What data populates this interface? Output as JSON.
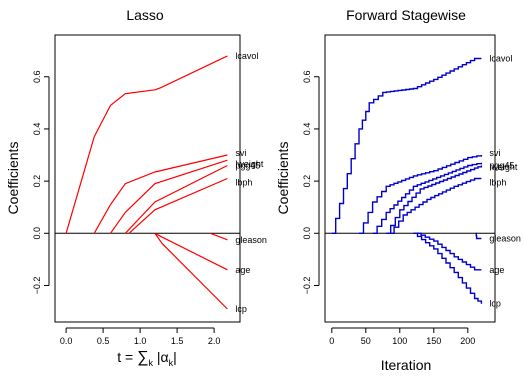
{
  "chart_data": [
    {
      "type": "line",
      "title": "Lasso",
      "xlabel": "t = ∑k |αk|",
      "ylabel": "Coefficients",
      "xlim": [
        -0.15,
        2.35
      ],
      "ylim": [
        -0.34,
        0.76
      ],
      "xticks": [
        "0.0",
        "0.5",
        "1.0",
        "1.5",
        "2.0"
      ],
      "yticks": [
        "−0.2",
        "0.0",
        "0.2",
        "0.4",
        "0.6"
      ],
      "color": "#ff0000",
      "series": [
        {
          "name": "lcavol",
          "x": [
            0.0,
            0.38,
            0.6,
            0.8,
            1.2,
            1.28,
            2.18
          ],
          "y": [
            0.0,
            0.37,
            0.49,
            0.535,
            0.55,
            0.558,
            0.68
          ]
        },
        {
          "name": "svi",
          "x": [
            0.38,
            0.6,
            0.8,
            1.2,
            2.18
          ],
          "y": [
            0.0,
            0.11,
            0.19,
            0.235,
            0.3
          ]
        },
        {
          "name": "lweight",
          "x": [
            0.6,
            0.8,
            1.2,
            2.18
          ],
          "y": [
            0.0,
            0.08,
            0.19,
            0.28
          ]
        },
        {
          "name": "pgg45",
          "x": [
            0.8,
            1.2,
            2.18
          ],
          "y": [
            0.0,
            0.12,
            0.26
          ]
        },
        {
          "name": "lbph",
          "x": [
            0.85,
            1.2,
            2.18
          ],
          "y": [
            0.0,
            0.09,
            0.21
          ]
        },
        {
          "name": "gleason",
          "x": [
            1.95,
            2.18
          ],
          "y": [
            0.0,
            -0.025
          ]
        },
        {
          "name": "age",
          "x": [
            1.2,
            1.3,
            2.18
          ],
          "y": [
            0.0,
            -0.015,
            -0.14
          ]
        },
        {
          "name": "lcp",
          "x": [
            1.2,
            1.3,
            2.18
          ],
          "y": [
            0.0,
            -0.04,
            -0.29
          ]
        }
      ]
    },
    {
      "type": "line",
      "title": "Forward Stagewise",
      "xlabel": "Iteration",
      "ylabel": "Coefficients",
      "xlim": [
        -10,
        240
      ],
      "ylim": [
        -0.34,
        0.76
      ],
      "xticks": [
        "0",
        "50",
        "100",
        "150",
        "200"
      ],
      "yticks": [
        "−0.2",
        "0.0",
        "0.2",
        "0.4",
        "0.6"
      ],
      "color": "#0000cc",
      "series": [
        {
          "name": "lcavol",
          "x": [
            0,
            40,
            55,
            75,
            120,
            150,
            180,
            210,
            220
          ],
          "y": [
            0.0,
            0.4,
            0.5,
            0.54,
            0.555,
            0.59,
            0.63,
            0.67,
            0.67
          ]
        },
        {
          "name": "svi",
          "x": [
            40,
            60,
            80,
            120,
            150,
            200,
            220
          ],
          "y": [
            0.0,
            0.12,
            0.18,
            0.22,
            0.24,
            0.29,
            0.3
          ]
        },
        {
          "name": "lweight",
          "x": [
            60,
            80,
            120,
            160,
            200,
            220
          ],
          "y": [
            0.0,
            0.08,
            0.18,
            0.22,
            0.26,
            0.27
          ]
        },
        {
          "name": "pgg45",
          "x": [
            80,
            100,
            130,
            170,
            210,
            220
          ],
          "y": [
            0.0,
            0.09,
            0.17,
            0.21,
            0.25,
            0.26
          ]
        },
        {
          "name": "lbph",
          "x": [
            85,
            105,
            140,
            180,
            210,
            220
          ],
          "y": [
            0.0,
            0.07,
            0.13,
            0.18,
            0.21,
            0.21
          ]
        },
        {
          "name": "gleason",
          "x": [
            212,
            213,
            220
          ],
          "y": [
            0.0,
            -0.02,
            -0.02
          ]
        },
        {
          "name": "age",
          "x": [
            125,
            150,
            180,
            210,
            220
          ],
          "y": [
            0.0,
            -0.03,
            -0.09,
            -0.14,
            -0.14
          ]
        },
        {
          "name": "lcp",
          "x": [
            120,
            150,
            180,
            210,
            220
          ],
          "y": [
            0.0,
            -0.06,
            -0.15,
            -0.25,
            -0.27
          ]
        }
      ]
    }
  ]
}
